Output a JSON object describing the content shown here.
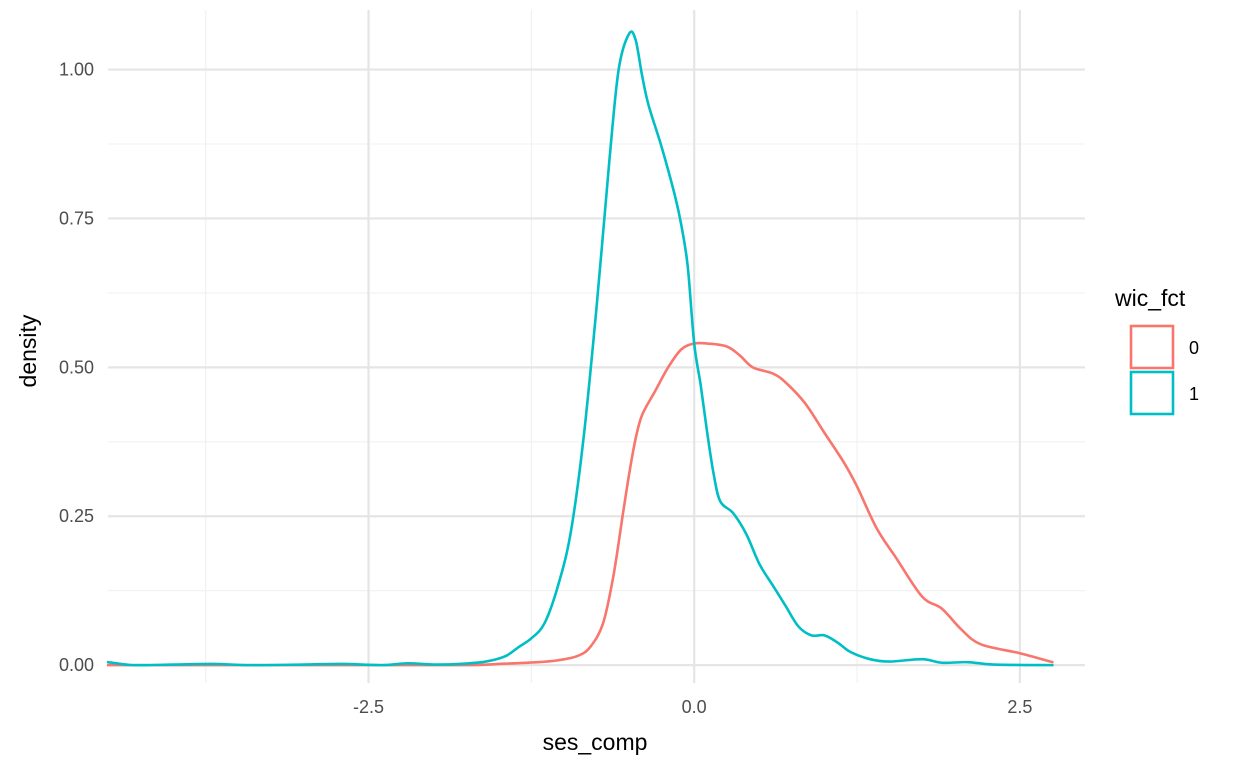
{
  "chart_data": {
    "type": "line",
    "xlabel": "ses_comp",
    "ylabel": "density",
    "xlim": [
      -4.5,
      3.0
    ],
    "ylim": [
      -0.03,
      1.1
    ],
    "x_ticks": [
      -2.5,
      0.0,
      2.5
    ],
    "x_tick_labels": [
      "-2.5",
      "0.0",
      "2.5"
    ],
    "x_minor_ticks": [
      -3.75,
      -1.25,
      1.25
    ],
    "y_ticks": [
      0.0,
      0.25,
      0.5,
      0.75,
      1.0
    ],
    "y_tick_labels": [
      "0.00",
      "0.25",
      "0.50",
      "0.75",
      "1.00"
    ],
    "y_minor_ticks": [
      0.125,
      0.375,
      0.625,
      0.875
    ],
    "grid": true,
    "legend": {
      "title": "wic_fct",
      "position": "right"
    },
    "series": [
      {
        "name": "0",
        "color": "#F8766D",
        "points": [
          [
            -4.5,
            0.0
          ],
          [
            -3.5,
            0.0
          ],
          [
            -2.5,
            0.0
          ],
          [
            -1.75,
            0.0
          ],
          [
            -1.5,
            0.002
          ],
          [
            -1.2,
            0.005
          ],
          [
            -1.05,
            0.008
          ],
          [
            -0.9,
            0.015
          ],
          [
            -0.8,
            0.03
          ],
          [
            -0.7,
            0.07
          ],
          [
            -0.62,
            0.15
          ],
          [
            -0.55,
            0.25
          ],
          [
            -0.5,
            0.32
          ],
          [
            -0.45,
            0.38
          ],
          [
            -0.4,
            0.42
          ],
          [
            -0.3,
            0.46
          ],
          [
            -0.2,
            0.5
          ],
          [
            -0.1,
            0.53
          ],
          [
            0.0,
            0.54
          ],
          [
            0.1,
            0.54
          ],
          [
            0.25,
            0.535
          ],
          [
            0.35,
            0.52
          ],
          [
            0.45,
            0.5
          ],
          [
            0.6,
            0.49
          ],
          [
            0.7,
            0.475
          ],
          [
            0.85,
            0.44
          ],
          [
            1.0,
            0.39
          ],
          [
            1.15,
            0.34
          ],
          [
            1.25,
            0.3
          ],
          [
            1.4,
            0.23
          ],
          [
            1.55,
            0.18
          ],
          [
            1.75,
            0.115
          ],
          [
            1.9,
            0.095
          ],
          [
            2.05,
            0.06
          ],
          [
            2.2,
            0.035
          ],
          [
            2.5,
            0.02
          ],
          [
            2.75,
            0.005
          ]
        ]
      },
      {
        "name": "1",
        "color": "#00BFC4",
        "points": [
          [
            -4.5,
            0.005
          ],
          [
            -4.3,
            0.0
          ],
          [
            -4.0,
            0.001
          ],
          [
            -3.7,
            0.002
          ],
          [
            -3.4,
            0.0
          ],
          [
            -3.0,
            0.001
          ],
          [
            -2.7,
            0.002
          ],
          [
            -2.4,
            0.0
          ],
          [
            -2.2,
            0.003
          ],
          [
            -2.0,
            0.001
          ],
          [
            -1.8,
            0.002
          ],
          [
            -1.6,
            0.006
          ],
          [
            -1.45,
            0.015
          ],
          [
            -1.35,
            0.03
          ],
          [
            -1.25,
            0.045
          ],
          [
            -1.15,
            0.07
          ],
          [
            -1.05,
            0.13
          ],
          [
            -0.95,
            0.22
          ],
          [
            -0.85,
            0.38
          ],
          [
            -0.75,
            0.6
          ],
          [
            -0.65,
            0.85
          ],
          [
            -0.58,
            1.0
          ],
          [
            -0.5,
            1.06
          ],
          [
            -0.45,
            1.05
          ],
          [
            -0.4,
            0.99
          ],
          [
            -0.35,
            0.94
          ],
          [
            -0.25,
            0.87
          ],
          [
            -0.15,
            0.79
          ],
          [
            -0.1,
            0.74
          ],
          [
            -0.05,
            0.67
          ],
          [
            0.0,
            0.54
          ],
          [
            0.05,
            0.47
          ],
          [
            0.1,
            0.39
          ],
          [
            0.15,
            0.32
          ],
          [
            0.2,
            0.275
          ],
          [
            0.3,
            0.255
          ],
          [
            0.4,
            0.22
          ],
          [
            0.5,
            0.17
          ],
          [
            0.6,
            0.135
          ],
          [
            0.7,
            0.1
          ],
          [
            0.8,
            0.065
          ],
          [
            0.9,
            0.05
          ],
          [
            1.0,
            0.05
          ],
          [
            1.1,
            0.038
          ],
          [
            1.2,
            0.022
          ],
          [
            1.35,
            0.01
          ],
          [
            1.5,
            0.006
          ],
          [
            1.75,
            0.01
          ],
          [
            1.9,
            0.004
          ],
          [
            2.1,
            0.005
          ],
          [
            2.3,
            0.001
          ],
          [
            2.75,
            0.0
          ]
        ]
      }
    ]
  }
}
